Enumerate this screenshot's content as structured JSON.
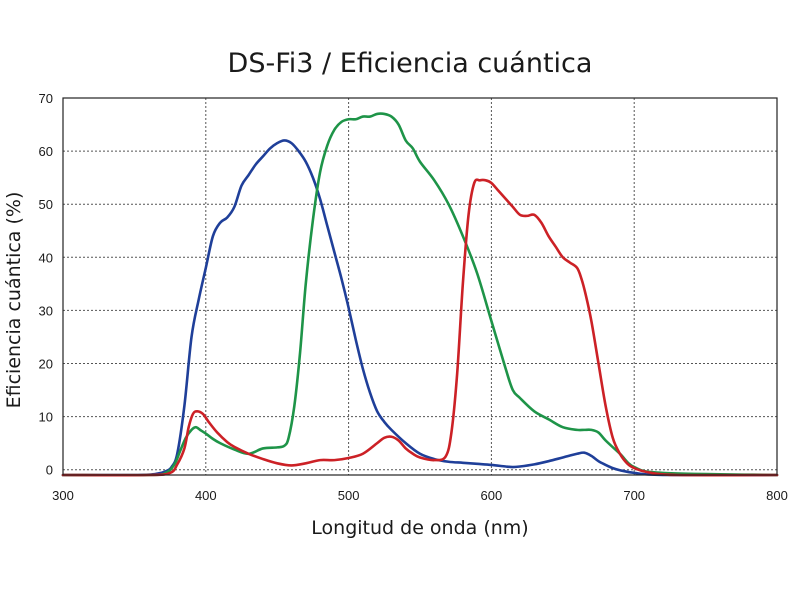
{
  "chart_data": {
    "type": "line",
    "title": "DS-Fi3 / Eficiencia cuántica",
    "xlabel": "Longitud de onda (nm)",
    "ylabel": "Eficiencia cuántica (%)",
    "xlim": [
      300,
      800
    ],
    "ylim": [
      -1,
      70
    ],
    "xticks": [
      300,
      400,
      500,
      600,
      700,
      800
    ],
    "yticks": [
      0,
      10,
      20,
      30,
      40,
      50,
      60,
      70
    ],
    "grid": true,
    "series": [
      {
        "color": "#1f3f99",
        "x": [
          300,
          350,
          365,
          372,
          376,
          380,
          385,
          390,
          395,
          400,
          405,
          410,
          415,
          420,
          425,
          430,
          435,
          440,
          445,
          450,
          455,
          460,
          465,
          470,
          475,
          480,
          485,
          490,
          495,
          500,
          505,
          510,
          515,
          520,
          525,
          530,
          540,
          550,
          560,
          570,
          580,
          590,
          600,
          610,
          615,
          620,
          630,
          640,
          650,
          660,
          665,
          670,
          675,
          680,
          685,
          690,
          700,
          720,
          800
        ],
        "y": [
          -1,
          -1,
          -0.8,
          -0.3,
          0.5,
          3,
          12,
          25,
          32,
          38,
          44,
          46.5,
          47.5,
          49.5,
          53.5,
          55.5,
          57.5,
          59,
          60.5,
          61.5,
          62,
          61.5,
          60,
          58,
          55,
          51,
          46,
          41,
          36,
          30.5,
          24.5,
          19,
          14.5,
          11,
          9,
          7.5,
          5,
          3,
          2,
          1.5,
          1.3,
          1.1,
          0.9,
          0.6,
          0.5,
          0.6,
          1,
          1.6,
          2.3,
          3,
          3.2,
          2.6,
          1.6,
          0.9,
          0.3,
          -0.1,
          -0.6,
          -1,
          -1
        ]
      },
      {
        "color": "#1e9448",
        "x": [
          300,
          360,
          372,
          378,
          382,
          386,
          390,
          393,
          396,
          400,
          405,
          410,
          420,
          430,
          440,
          450,
          455,
          458,
          462,
          466,
          470,
          475,
          480,
          485,
          490,
          495,
          500,
          505,
          510,
          515,
          520,
          525,
          530,
          535,
          540,
          545,
          550,
          560,
          570,
          580,
          590,
          600,
          610,
          615,
          620,
          630,
          640,
          650,
          660,
          665,
          670,
          675,
          680,
          690,
          700,
          720,
          800
        ],
        "y": [
          -1,
          -1,
          -0.6,
          1,
          3.5,
          6,
          7.5,
          8,
          7.5,
          6.8,
          5.8,
          5,
          3.8,
          3,
          4,
          4.2,
          4.5,
          6,
          12,
          22,
          35,
          47,
          56,
          61,
          64,
          65.5,
          66,
          66,
          66.5,
          66.5,
          67,
          67,
          66.5,
          65,
          62,
          60.5,
          58,
          54.5,
          50,
          44,
          37,
          28,
          19,
          15,
          13.5,
          11,
          9.5,
          8,
          7.5,
          7.5,
          7.5,
          7,
          5.5,
          3,
          0.5,
          -0.6,
          -1
        ]
      },
      {
        "color": "#cc2126",
        "x": [
          300,
          360,
          375,
          380,
          385,
          388,
          391,
          394,
          398,
          402,
          408,
          415,
          420,
          430,
          440,
          450,
          460,
          470,
          480,
          490,
          500,
          510,
          520,
          525,
          530,
          535,
          540,
          545,
          550,
          560,
          568,
          572,
          576,
          580,
          584,
          588,
          592,
          596,
          600,
          605,
          610,
          615,
          620,
          625,
          630,
          635,
          640,
          645,
          650,
          655,
          660,
          663,
          666,
          670,
          675,
          680,
          685,
          690,
          695,
          700,
          710,
          730,
          800
        ],
        "y": [
          -1,
          -1,
          -0.6,
          1,
          4,
          8,
          10.5,
          11,
          10.5,
          9,
          7,
          5.2,
          4.3,
          3,
          2,
          1.2,
          0.8,
          1.2,
          1.8,
          1.8,
          2.2,
          3,
          5,
          6,
          6.2,
          5.5,
          4,
          3,
          2.3,
          1.8,
          2.5,
          7,
          18,
          35,
          48,
          54,
          54.5,
          54.5,
          54,
          52.5,
          51,
          49.5,
          48,
          47.8,
          48,
          46.5,
          44,
          42,
          40,
          39,
          38,
          36,
          33,
          28,
          20,
          12,
          6,
          3,
          1.2,
          0.3,
          -0.5,
          -1,
          -1
        ]
      }
    ]
  }
}
